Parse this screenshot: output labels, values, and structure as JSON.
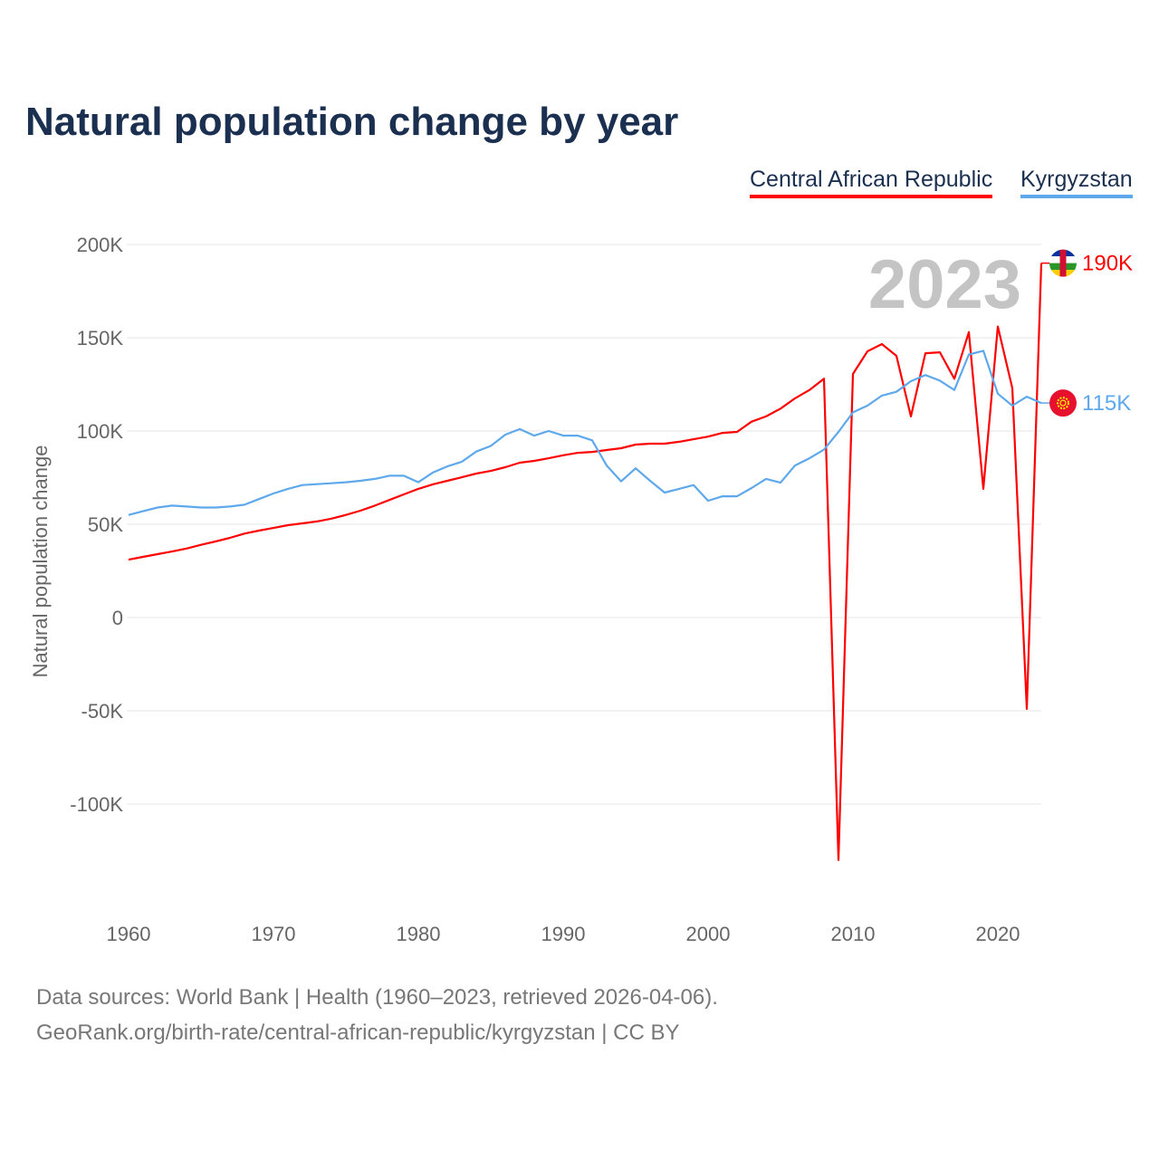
{
  "title": "Natural population change by year",
  "footer": {
    "line1": "Data sources: World Bank | Health (1960–2023, retrieved 2026-04-06).",
    "line2": "GeoRank.org/birth-rate/central-african-republic/kyrgyzstan | CC BY"
  },
  "chart_data": {
    "type": "line",
    "title": "Natural population change by year",
    "xlabel": "",
    "ylabel": "Natural population change",
    "ylim": [
      -150000,
      200000
    ],
    "xlim": [
      1960,
      2023
    ],
    "grid": true,
    "legend_position": "top-right",
    "year_label": "2023",
    "y_ticks": [
      {
        "v": 200000,
        "label": "200K"
      },
      {
        "v": 150000,
        "label": "150K"
      },
      {
        "v": 100000,
        "label": "100K"
      },
      {
        "v": 50000,
        "label": "50K"
      },
      {
        "v": 0,
        "label": "0"
      },
      {
        "v": -50000,
        "label": "-50K"
      },
      {
        "v": -100000,
        "label": "-100K"
      }
    ],
    "x_ticks": [
      {
        "v": 1960,
        "label": "1960"
      },
      {
        "v": 1970,
        "label": "1970"
      },
      {
        "v": 1980,
        "label": "1980"
      },
      {
        "v": 1990,
        "label": "1990"
      },
      {
        "v": 2000,
        "label": "2000"
      },
      {
        "v": 2010,
        "label": "2010"
      },
      {
        "v": 2020,
        "label": "2020"
      }
    ],
    "x_start": 1960,
    "series": [
      {
        "name": "Central African Republic",
        "color": "#ff0000",
        "end_label": "190K",
        "flag": "central-african-republic-flag-icon",
        "values": [
          31000,
          32500,
          34000,
          35400,
          37000,
          39000,
          40800,
          42700,
          45000,
          46600,
          48000,
          49500,
          50500,
          51500,
          53000,
          55000,
          57300,
          60000,
          63000,
          66000,
          69000,
          71400,
          73300,
          75200,
          77200,
          78600,
          80600,
          83000,
          84000,
          85400,
          87000,
          88300,
          88800,
          89800,
          90800,
          92700,
          93200,
          93200,
          94200,
          95600,
          97000,
          99000,
          99500,
          105000,
          107800,
          112000,
          117500,
          122000,
          128000,
          -130000,
          130600,
          142700,
          146600,
          140300,
          107800,
          141700,
          142200,
          128000,
          153000,
          69000,
          156000,
          123000,
          -49000,
          190000
        ]
      },
      {
        "name": "Kyrgyzstan",
        "color": "#5ea8ec",
        "end_label": "115K",
        "flag": "kyrgyzstan-flag-icon",
        "values": [
          55000,
          57000,
          59000,
          60000,
          59500,
          59000,
          59000,
          59500,
          60500,
          63500,
          66500,
          69000,
          71000,
          71500,
          72000,
          72500,
          73300,
          74300,
          76000,
          76000,
          72500,
          77700,
          81000,
          83500,
          89000,
          92000,
          98000,
          101000,
          97500,
          100000,
          97500,
          97500,
          95000,
          81500,
          73000,
          80000,
          73300,
          67000,
          69000,
          71000,
          62600,
          65000,
          65000,
          69400,
          74300,
          72300,
          81500,
          85400,
          90000,
          99500,
          110000,
          113600,
          119000,
          121000,
          126700,
          130000,
          127000,
          122000,
          141000,
          143000,
          120000,
          113600,
          118400,
          115000
        ]
      }
    ]
  }
}
